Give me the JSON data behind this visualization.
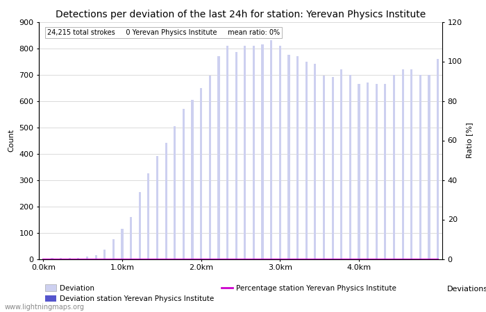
{
  "title": "Detections per deviation of the last 24h for station: Yerevan Physics Institute",
  "subtitle": "24,215 total strokes     0 Yerevan Physics Institute     mean ratio: 0%",
  "ylabel_left": "Count",
  "ylabel_right": "Ratio [%]",
  "xlabel_right": "Deviations",
  "xlim": [
    -0.5,
    45.5
  ],
  "ylim_left": [
    0,
    900
  ],
  "ylim_right": [
    0,
    120
  ],
  "yticks_left": [
    0,
    100,
    200,
    300,
    400,
    500,
    600,
    700,
    800,
    900
  ],
  "yticks_right": [
    0,
    20,
    40,
    60,
    80,
    100,
    120
  ],
  "xtick_labels": [
    "0.0km",
    "1.0km",
    "2.0km",
    "3.0km",
    "4.0km"
  ],
  "xtick_positions": [
    0,
    9,
    18,
    27,
    36
  ],
  "bar_values": [
    2,
    3,
    5,
    5,
    5,
    10,
    15,
    35,
    75,
    115,
    160,
    255,
    325,
    390,
    440,
    505,
    570,
    605,
    650,
    695,
    770,
    810,
    785,
    810,
    810,
    815,
    830,
    810,
    775,
    770,
    750,
    740,
    695,
    690,
    720,
    700,
    665,
    670,
    665,
    665,
    700,
    720,
    720,
    700,
    700,
    760
  ],
  "station_values": [
    0,
    0,
    0,
    0,
    0,
    0,
    0,
    0,
    0,
    0,
    0,
    0,
    0,
    0,
    0,
    0,
    0,
    0,
    0,
    0,
    0,
    0,
    0,
    0,
    0,
    0,
    0,
    0,
    0,
    0,
    0,
    0,
    0,
    0,
    0,
    0,
    0,
    0,
    0,
    0,
    0,
    0,
    0,
    0,
    0,
    0
  ],
  "percentage_values": [
    0,
    0,
    0,
    0,
    0,
    0,
    0,
    0,
    0,
    0,
    0,
    0,
    0,
    0,
    0,
    0,
    0,
    0,
    0,
    0,
    0,
    0,
    0,
    0,
    0,
    0,
    0,
    0,
    0,
    0,
    0,
    0,
    0,
    0,
    0,
    0,
    0,
    0,
    0,
    0,
    0,
    0,
    0,
    0,
    0,
    0
  ],
  "bar_color": "#cdd0f0",
  "station_bar_color": "#5555cc",
  "percentage_line_color": "#cc00cc",
  "bar_width": 0.25,
  "grid_color": "#cccccc",
  "bg_color": "#ffffff",
  "legend_deviation": "Deviation",
  "legend_station": "Deviation station Yerevan Physics Institute",
  "legend_percentage": "Percentage station Yerevan Physics Institute",
  "watermark": "www.lightningmaps.org",
  "title_fontsize": 10,
  "axis_fontsize": 8,
  "tick_fontsize": 8
}
